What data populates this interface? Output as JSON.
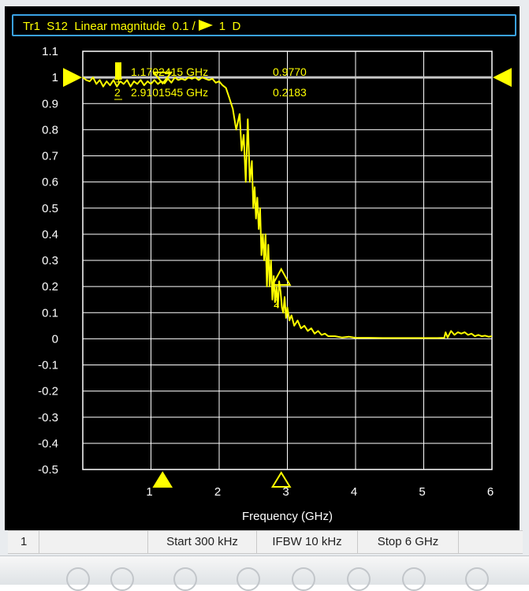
{
  "header": {
    "trace": "Tr1",
    "parameter": "S12",
    "format": "Linear magnitude",
    "scale": "0.1 /",
    "reference_value": "1",
    "flag": "D"
  },
  "status_bar": {
    "channel": "1",
    "start": "Start 300 kHz",
    "ifbw": "IFBW 10 kHz",
    "stop": "Stop 6 GHz"
  },
  "colors": {
    "trace": "#ffff00",
    "reference_line": "#c8c8c8",
    "grid": "#ffffff",
    "header_border": "#3aa2e6",
    "background": "#000000"
  },
  "chart_data": {
    "type": "line",
    "xlabel": "Frequency (GHz)",
    "ylabel": "",
    "xlim": [
      0.0003,
      6
    ],
    "ylim": [
      -0.5,
      1.1
    ],
    "x_ticks": [
      {
        "value": 1,
        "label": "1"
      },
      {
        "value": 2,
        "label": "2"
      },
      {
        "value": 3,
        "label": "3"
      },
      {
        "value": 4,
        "label": "4"
      },
      {
        "value": 5,
        "label": "5"
      },
      {
        "value": 6,
        "label": "6"
      }
    ],
    "y_ticks": [
      {
        "value": 1.1,
        "label": "1.1"
      },
      {
        "value": 1.0,
        "label": "1"
      },
      {
        "value": 0.9,
        "label": "0.9"
      },
      {
        "value": 0.8,
        "label": "0.8"
      },
      {
        "value": 0.7,
        "label": "0.7"
      },
      {
        "value": 0.6,
        "label": "0.6"
      },
      {
        "value": 0.5,
        "label": "0.5"
      },
      {
        "value": 0.4,
        "label": "0.4"
      },
      {
        "value": 0.3,
        "label": "0.3"
      },
      {
        "value": 0.2,
        "label": "0.2"
      },
      {
        "value": 0.1,
        "label": "0.1"
      },
      {
        "value": 0.0,
        "label": "0"
      },
      {
        "value": -0.1,
        "label": "-0.1"
      },
      {
        "value": -0.2,
        "label": "-0.2"
      },
      {
        "value": -0.3,
        "label": "-0.3"
      },
      {
        "value": -0.4,
        "label": "-0.4"
      },
      {
        "value": -0.5,
        "label": "-0.5"
      }
    ],
    "reference_level": 1.0,
    "grid": true,
    "series": [
      {
        "x": [
          0.0003,
          0.05,
          0.1,
          0.15,
          0.2,
          0.25,
          0.3,
          0.35,
          0.4,
          0.45,
          0.5,
          0.55,
          0.6,
          0.65,
          0.7,
          0.75,
          0.8,
          0.85,
          0.9,
          0.95,
          1.0,
          1.05,
          1.1,
          1.15,
          1.2,
          1.25,
          1.3,
          1.35,
          1.4,
          1.45,
          1.5,
          1.55,
          1.6,
          1.65,
          1.7,
          1.75,
          1.8,
          1.85,
          1.9,
          1.95,
          2.0,
          2.05,
          2.1,
          2.15,
          2.2,
          2.25,
          2.3,
          2.33,
          2.36,
          2.39,
          2.42,
          2.45,
          2.48,
          2.5,
          2.52,
          2.54,
          2.56,
          2.58,
          2.6,
          2.62,
          2.64,
          2.66,
          2.68,
          2.7,
          2.72,
          2.74,
          2.76,
          2.78,
          2.8,
          2.82,
          2.84,
          2.86,
          2.88,
          2.9,
          2.92,
          2.94,
          2.96,
          2.98,
          3.0,
          3.03,
          3.06,
          3.1,
          3.15,
          3.2,
          3.25,
          3.3,
          3.35,
          3.4,
          3.45,
          3.5,
          3.55,
          3.6,
          3.7,
          3.8,
          3.9,
          4.0,
          4.2,
          4.4,
          4.6,
          4.8,
          5.0,
          5.2,
          5.3,
          5.32,
          5.35,
          5.4,
          5.45,
          5.5,
          5.55,
          5.6,
          5.65,
          5.7,
          5.75,
          5.8,
          5.85,
          5.9,
          5.95,
          6.0
        ],
        "y": [
          1.0,
          0.99,
          0.985,
          1.0,
          0.975,
          0.99,
          0.965,
          0.985,
          0.97,
          0.99,
          0.965,
          0.985,
          0.975,
          0.99,
          0.965,
          0.985,
          0.975,
          0.99,
          0.97,
          0.985,
          0.975,
          0.99,
          0.975,
          0.985,
          0.977,
          0.995,
          0.98,
          1.0,
          0.99,
          0.995,
          0.99,
          1.0,
          0.995,
          1.0,
          0.99,
          1.0,
          0.995,
          0.99,
          0.995,
          0.98,
          0.985,
          0.97,
          0.96,
          0.92,
          0.88,
          0.8,
          0.86,
          0.72,
          0.78,
          0.6,
          0.84,
          0.6,
          0.68,
          0.5,
          0.58,
          0.46,
          0.54,
          0.42,
          0.5,
          0.32,
          0.4,
          0.3,
          0.4,
          0.2,
          0.36,
          0.2,
          0.3,
          0.15,
          0.24,
          0.14,
          0.2,
          0.12,
          0.22,
          0.18,
          0.12,
          0.1,
          0.16,
          0.08,
          0.12,
          0.07,
          0.09,
          0.05,
          0.07,
          0.04,
          0.05,
          0.03,
          0.04,
          0.02,
          0.03,
          0.015,
          0.02,
          0.01,
          0.01,
          0.005,
          0.008,
          0.004,
          0.004,
          0.003,
          0.003,
          0.003,
          0.003,
          0.003,
          0.004,
          0.025,
          0.005,
          0.03,
          0.015,
          0.025,
          0.02,
          0.025,
          0.015,
          0.02,
          0.01,
          0.015,
          0.01,
          0.012,
          0.008,
          0.01
        ]
      }
    ],
    "markers": [
      {
        "number": "1",
        "frequency": "1.1702415 GHz",
        "value": "0.9770",
        "x": 1.1702415,
        "y": 0.977,
        "active": true
      },
      {
        "number": "2",
        "frequency": "2.9101545 GHz",
        "value": "0.2183",
        "x": 2.9101545,
        "y": 0.2183,
        "active": false
      }
    ]
  }
}
